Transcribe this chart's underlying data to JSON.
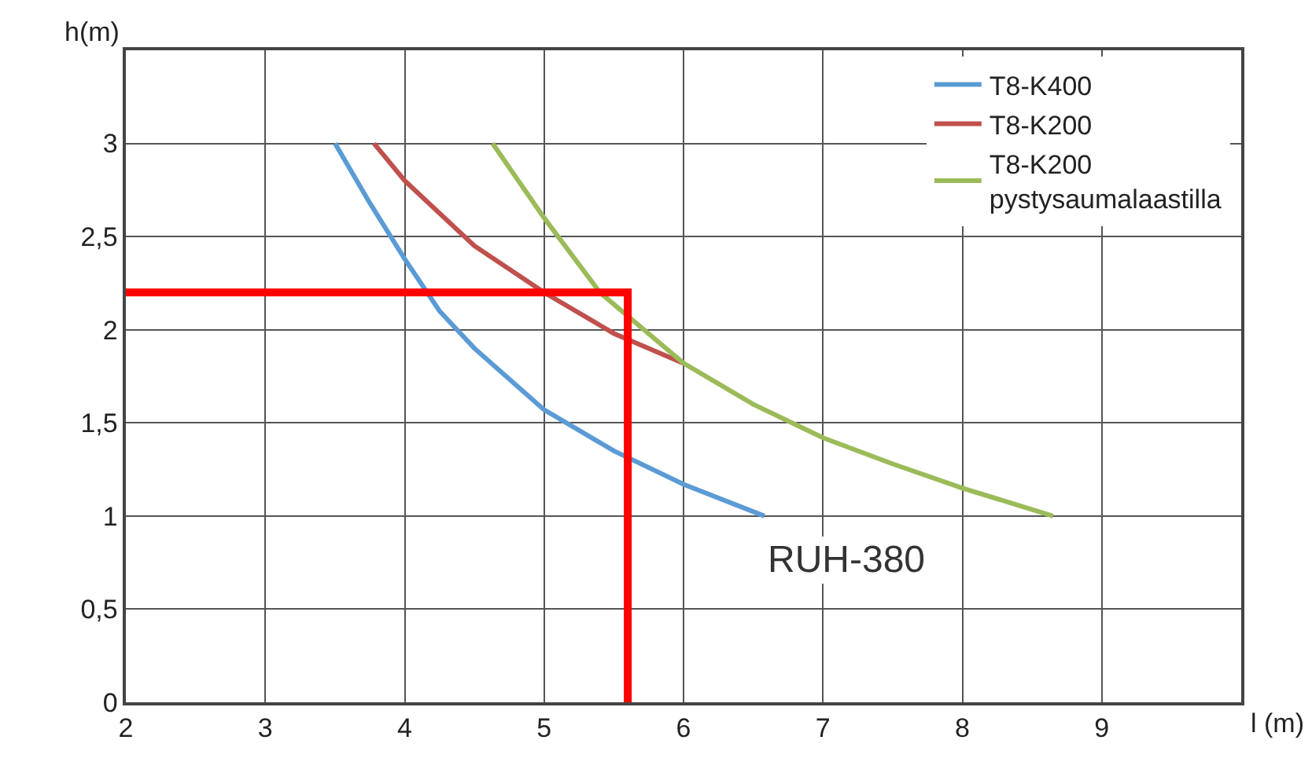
{
  "chart_data": {
    "type": "line",
    "xlabel": "l (m)",
    "ylabel": "h(m)",
    "xlim": [
      2,
      10
    ],
    "ylim": [
      0,
      3.5
    ],
    "xticks": [
      2,
      3,
      4,
      5,
      6,
      7,
      8,
      9,
      {
        "value": 10,
        "label": null
      }
    ],
    "yticks": [
      {
        "value": 0,
        "label": "0"
      },
      {
        "value": 0.5,
        "label": "0,5"
      },
      {
        "value": 1,
        "label": "1"
      },
      {
        "value": 1.5,
        "label": "1,5"
      },
      {
        "value": 2,
        "label": "2"
      },
      {
        "value": 2.5,
        "label": "2,5"
      },
      {
        "value": 3,
        "label": "3"
      },
      {
        "value": 3.5,
        "label": null
      }
    ],
    "grid": true,
    "legend": "top right",
    "marker": "none",
    "line_style": "solid",
    "annotations": [
      "RUH-380"
    ],
    "series": [
      {
        "name": "T8-K400",
        "color": "#5b9bd5",
        "x": [
          3.5,
          3.75,
          4,
          4.25,
          4.5,
          5,
          5.5,
          6,
          6.58
        ],
        "values": [
          3,
          2.68,
          2.38,
          2.1,
          1.9,
          1.57,
          1.35,
          1.17,
          1
        ]
      },
      {
        "name": "T8-K200",
        "color": "#c0504d",
        "x": [
          3.78,
          4,
          4.5,
          5,
          5.5,
          6
        ],
        "values": [
          3,
          2.8,
          2.45,
          2.2,
          1.98,
          1.82
        ]
      },
      {
        "name": "T8-K200\npystysaumalaastilla",
        "color": "#9bbb59",
        "x": [
          4.63,
          5,
          5.4,
          6,
          6.5,
          7,
          7.5,
          8,
          8.65
        ],
        "values": [
          3,
          2.6,
          2.2,
          1.82,
          1.6,
          1.42,
          1.28,
          1.15,
          1
        ]
      },
      {
        "color": "#ff0000",
        "x": [
          2,
          5.6,
          5.6
        ],
        "values": [
          2.2,
          2.2,
          0
        ]
      }
    ]
  }
}
